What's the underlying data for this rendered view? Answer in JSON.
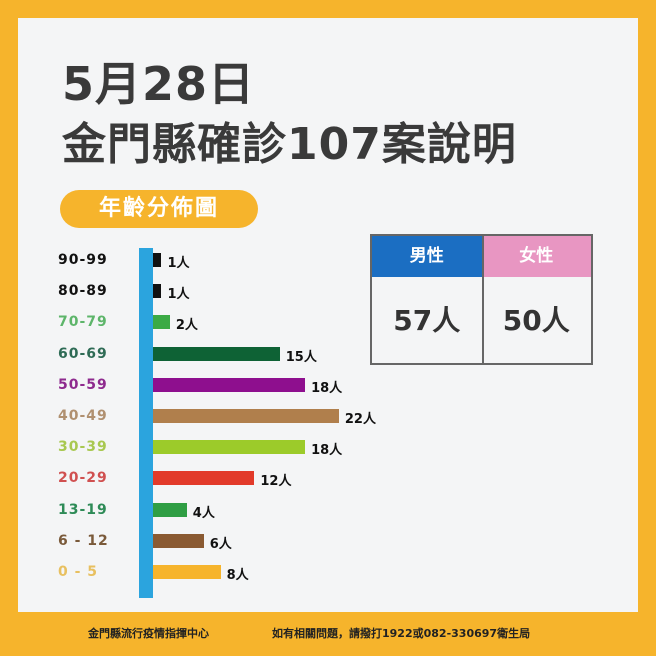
{
  "title": {
    "line1": "5月28日",
    "line2": "金門縣確診107案說明"
  },
  "section_label": "年齡分佈圖",
  "gender_table": {
    "male_label": "男性",
    "female_label": "女性",
    "male_value": "57人",
    "female_value": "50人",
    "male_color": "#1B6EC2",
    "female_color": "#E896C2"
  },
  "chart_data": {
    "type": "bar",
    "orientation": "horizontal",
    "title": "年齡分佈圖",
    "unit": "人",
    "categories": [
      "90-99",
      "80-89",
      "70-79",
      "60-69",
      "50-59",
      "40-49",
      "30-39",
      "20-29",
      "13-19",
      "6 - 12",
      "0  -  5"
    ],
    "values": [
      1,
      1,
      2,
      15,
      18,
      22,
      18,
      12,
      4,
      6,
      8
    ],
    "value_labels": [
      "1人",
      "1人",
      "2人",
      "15人",
      "18人",
      "22人",
      "18人",
      "12人",
      "4人",
      "6人",
      "8人"
    ],
    "colors": [
      "#111111",
      "#111111",
      "#3BAA45",
      "#0E6235",
      "#8E0F8E",
      "#B07F4C",
      "#9CCB2A",
      "#E23A2A",
      "#2F9E44",
      "#8A5A32",
      "#F6B42C"
    ],
    "label_colors": [
      "#111111",
      "#111111",
      "#5DB56A",
      "#2E6B55",
      "#8E2A8E",
      "#B09070",
      "#A8C850",
      "#D05050",
      "#2E8B57",
      "#7A5A3A",
      "#E8C060"
    ]
  },
  "footer": {
    "left": "金門縣流行疫情指揮中心",
    "right": "如有相關問題，請撥打1922或082-330697衛生局"
  }
}
